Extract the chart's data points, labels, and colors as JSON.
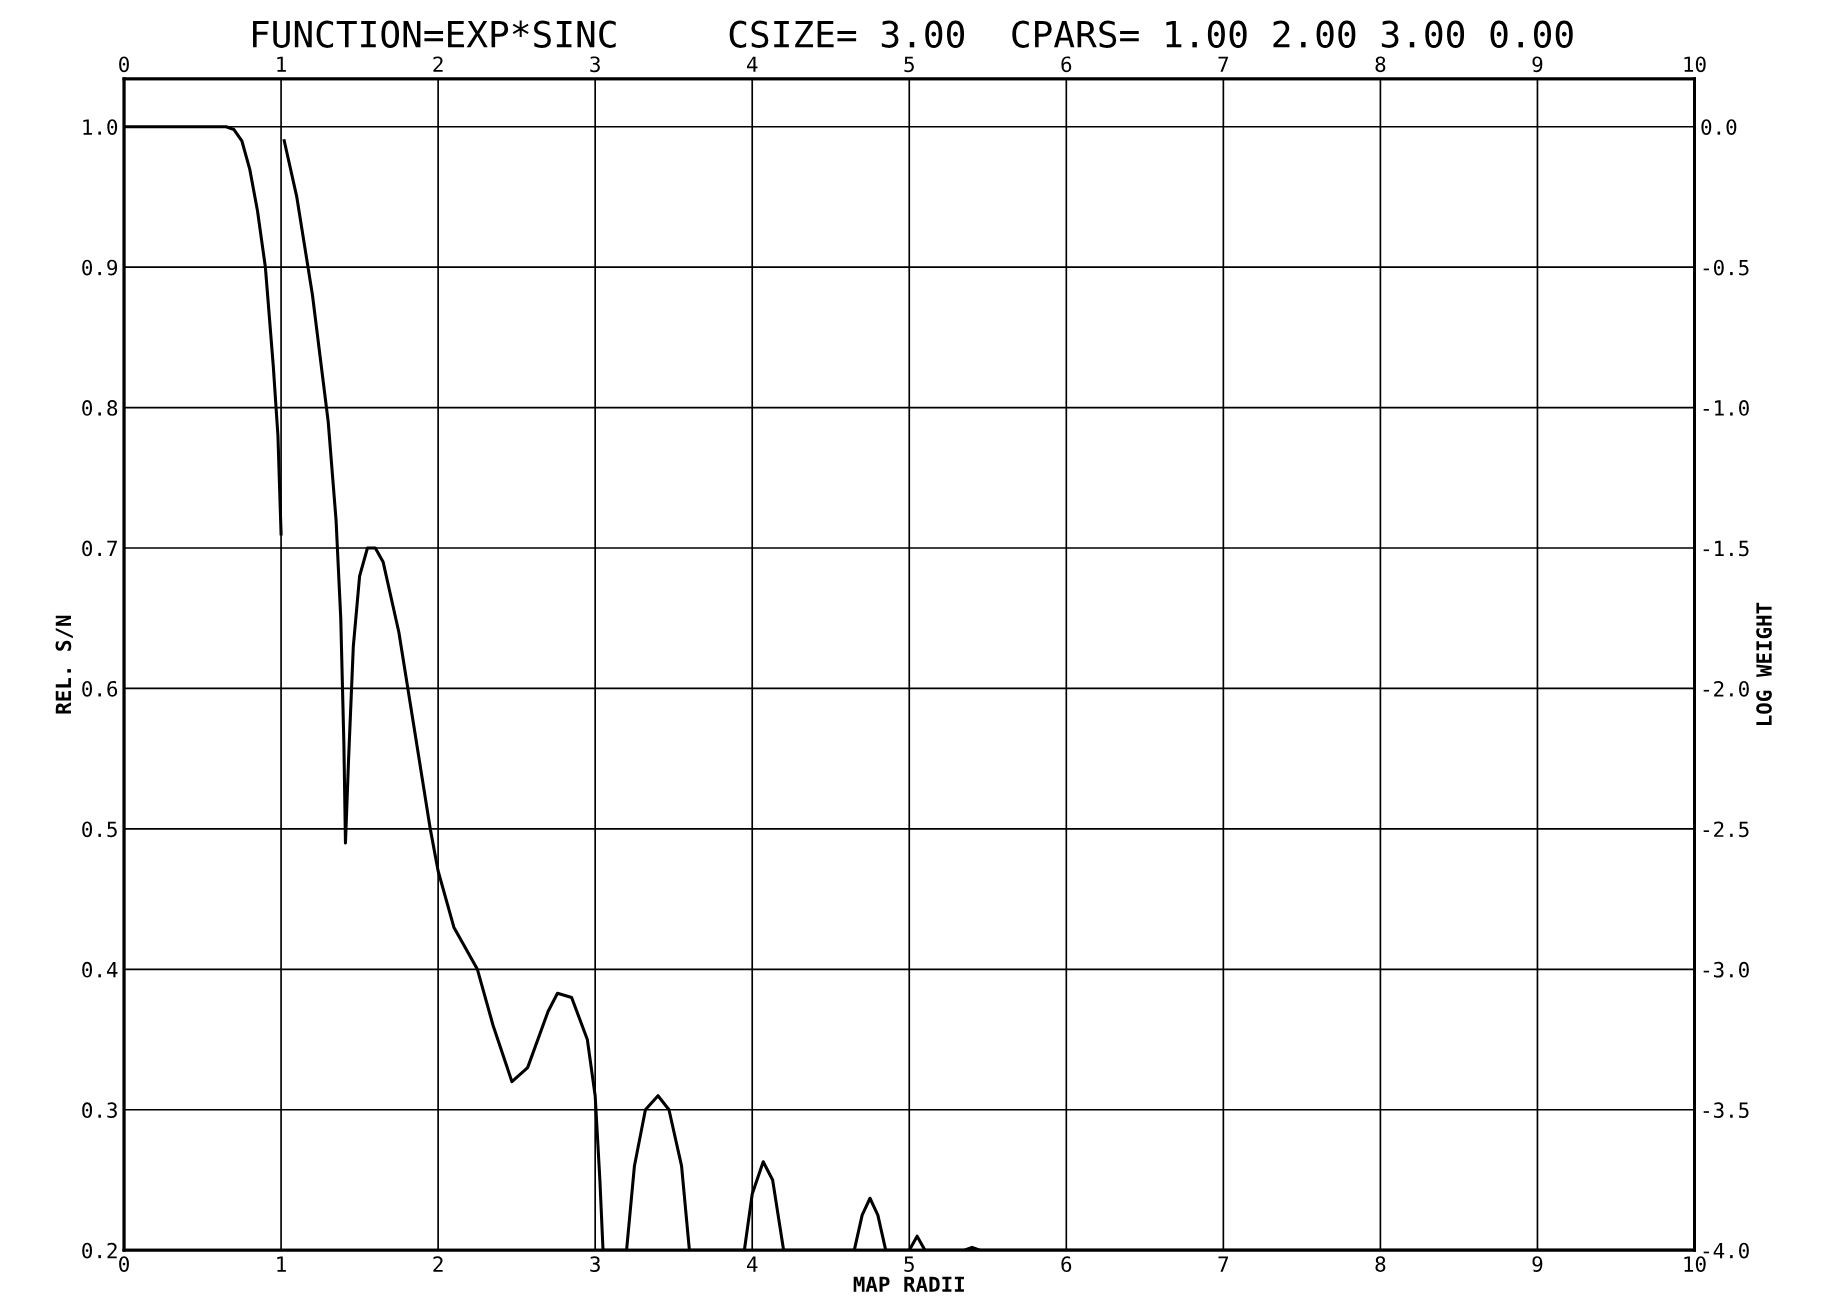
{
  "chart_data": {
    "type": "line",
    "title": "FUNCTION=EXP*SINC     CSIZE= 3.00  CPARS= 1.00 2.00 3.00 0.00",
    "xlabel": "MAP RADII",
    "ylabel": "REL. S/N",
    "y2label": "LOG WEIGHT",
    "x": [
      0,
      0.5,
      0.65,
      0.7,
      0.75,
      0.8,
      0.85,
      0.9,
      0.95,
      0.98,
      1.0,
      1.01,
      1.02,
      1.1,
      1.2,
      1.3,
      1.35,
      1.38,
      1.4,
      1.41,
      1.43,
      1.46,
      1.5,
      1.55,
      1.6,
      1.65,
      1.75,
      1.85,
      1.95,
      2.0,
      2.1,
      2.25,
      2.35,
      2.47,
      2.57,
      2.7,
      2.76,
      2.85,
      2.95,
      3.0,
      3.03,
      3.05,
      3.2,
      3.25,
      3.32,
      3.4,
      3.47,
      3.55,
      3.6,
      3.95,
      4.0,
      4.07,
      4.13,
      4.2,
      4.65,
      4.7,
      4.75,
      4.8,
      4.85,
      5.0,
      5.05,
      5.1,
      5.35,
      5.4,
      5.45,
      10
    ],
    "series": [
      {
        "color": "#000000",
        "values": [
          1.0,
          1.0,
          1.0,
          0.998,
          0.99,
          0.97,
          0.94,
          0.9,
          0.83,
          0.78,
          0.71,
          null,
          0.99,
          0.95,
          0.88,
          0.79,
          0.72,
          0.65,
          0.56,
          0.49,
          0.55,
          0.63,
          0.68,
          0.7,
          0.7,
          0.69,
          0.64,
          0.57,
          0.5,
          0.47,
          0.43,
          0.4,
          0.36,
          0.32,
          0.33,
          0.37,
          0.383,
          0.38,
          0.35,
          0.31,
          0.25,
          0.2,
          0.2,
          0.26,
          0.3,
          0.31,
          0.3,
          0.26,
          0.2,
          0.2,
          0.24,
          0.263,
          0.25,
          0.2,
          0.2,
          0.225,
          0.237,
          0.225,
          0.2,
          0.2,
          0.21,
          0.2,
          0.2,
          0.202,
          0.2,
          0.2
        ]
      }
    ],
    "xlim": [
      0,
      10
    ],
    "xticks": [
      0,
      1,
      2,
      3,
      4,
      5,
      6,
      7,
      8,
      9,
      10
    ],
    "x2lim": [
      0,
      10
    ],
    "x2ticks": [
      0,
      1,
      2,
      3,
      4,
      5,
      6,
      7,
      8,
      9,
      10
    ],
    "ylim": [
      0.2,
      1.034
    ],
    "yticks": [
      {
        "value": 0.2,
        "label": "0.2"
      },
      {
        "value": 0.3,
        "label": "0.3"
      },
      {
        "value": 0.4,
        "label": "0.4"
      },
      {
        "value": 0.5,
        "label": "0.5"
      },
      {
        "value": 0.6,
        "label": "0.6"
      },
      {
        "value": 0.7,
        "label": "0.7"
      },
      {
        "value": 0.8,
        "label": "0.8"
      },
      {
        "value": 0.9,
        "label": "0.9"
      },
      {
        "value": 1.0,
        "label": "1.0"
      }
    ],
    "y2lim": [
      -4.0,
      0.17
    ],
    "y2ticks": [
      {
        "value": -4.0,
        "label": "-4.0"
      },
      {
        "value": -3.5,
        "label": "-3.5"
      },
      {
        "value": -3.0,
        "label": "-3.0"
      },
      {
        "value": -2.5,
        "label": "-2.5"
      },
      {
        "value": -2.0,
        "label": "-2.0"
      },
      {
        "value": -1.5,
        "label": "-1.5"
      },
      {
        "value": -1.0,
        "label": "-1.0"
      },
      {
        "value": -0.5,
        "label": "-0.5"
      },
      {
        "value": 0.0,
        "label": "0.0"
      }
    ],
    "grid": true,
    "marker": "none",
    "line_style": "solid"
  }
}
